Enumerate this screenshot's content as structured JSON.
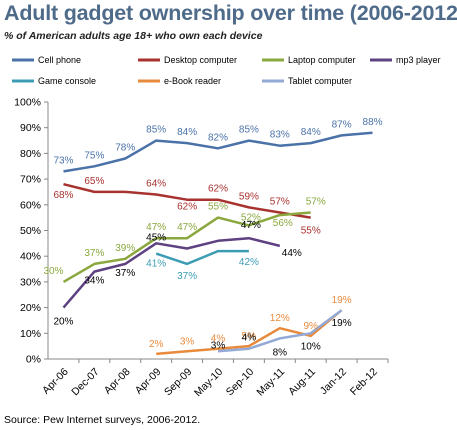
{
  "chart_data": {
    "type": "line",
    "title": "Adult gadget ownership over time (2006-2012)",
    "subtitle": "% of American adults age 18+ who own each device",
    "source": "Source: Pew Internet surveys, 2006-2012.",
    "categories": [
      "Apr-06",
      "Dec-07",
      "Apr-08",
      "Apr-09",
      "Sep-09",
      "May-10",
      "Sep-10",
      "May-11",
      "Aug-11",
      "Jan-12",
      "Feb-12"
    ],
    "ylim": [
      0,
      100
    ],
    "yticks": [
      "0%",
      "10%",
      "20%",
      "30%",
      "40%",
      "50%",
      "60%",
      "70%",
      "80%",
      "90%",
      "100%"
    ],
    "grid": false,
    "legend_position": "top",
    "series": [
      {
        "name": "Cell phone",
        "color": "#4a72a8",
        "values": [
          73,
          75,
          78,
          85,
          84,
          82,
          85,
          83,
          84,
          87,
          88
        ],
        "labels": [
          "73%",
          "75%",
          "78%",
          "85%",
          "84%",
          "82%",
          "85%",
          "83%",
          "84%",
          "87%",
          "88%"
        ]
      },
      {
        "name": "Desktop computer",
        "color": "#a8322f",
        "values": [
          68,
          65,
          65,
          64,
          62,
          62,
          59,
          57,
          55,
          null,
          null
        ],
        "labels": [
          "68%",
          "65%",
          "",
          "64%",
          "62%",
          "62%",
          "59%",
          "57%",
          "55%",
          "",
          ""
        ]
      },
      {
        "name": "Laptop computer",
        "color": "#8aa83d",
        "values": [
          30,
          37,
          39,
          47,
          47,
          55,
          52,
          56,
          57,
          null,
          null
        ],
        "labels": [
          "30%",
          "37%",
          "39%",
          "47%",
          "47%",
          "55%",
          "52%",
          "56%",
          "57%",
          "",
          ""
        ]
      },
      {
        "name": "mp3 player",
        "color": "#5e4181",
        "values": [
          20,
          34,
          37,
          45,
          43,
          46,
          47,
          44,
          null,
          null,
          null
        ],
        "labels": [
          "20%",
          "34%",
          "37%",
          "45%",
          "",
          "",
          "47%",
          "44%",
          "",
          "",
          ""
        ]
      },
      {
        "name": "Game console",
        "color": "#3c9cb4",
        "values": [
          null,
          null,
          null,
          41,
          37,
          42,
          42,
          null,
          null,
          null,
          null
        ],
        "labels": [
          "",
          "",
          "",
          "41%",
          "37%",
          "",
          "42%",
          "",
          "",
          "",
          ""
        ]
      },
      {
        "name": "e-Book reader",
        "color": "#e88a3c",
        "values": [
          null,
          null,
          null,
          2,
          3,
          4,
          5,
          12,
          9,
          19,
          null
        ],
        "labels": [
          "",
          "",
          "",
          "2%",
          "3%",
          "4%",
          "5%",
          "12%",
          "9%",
          "19%",
          ""
        ]
      },
      {
        "name": "Tablet computer",
        "color": "#93aad6",
        "values": [
          null,
          null,
          null,
          null,
          null,
          3,
          4,
          8,
          10,
          19,
          null
        ],
        "labels": [
          "",
          "",
          "",
          "",
          "",
          "3%",
          "4%",
          "8%",
          "10%",
          "19%",
          ""
        ]
      }
    ]
  }
}
